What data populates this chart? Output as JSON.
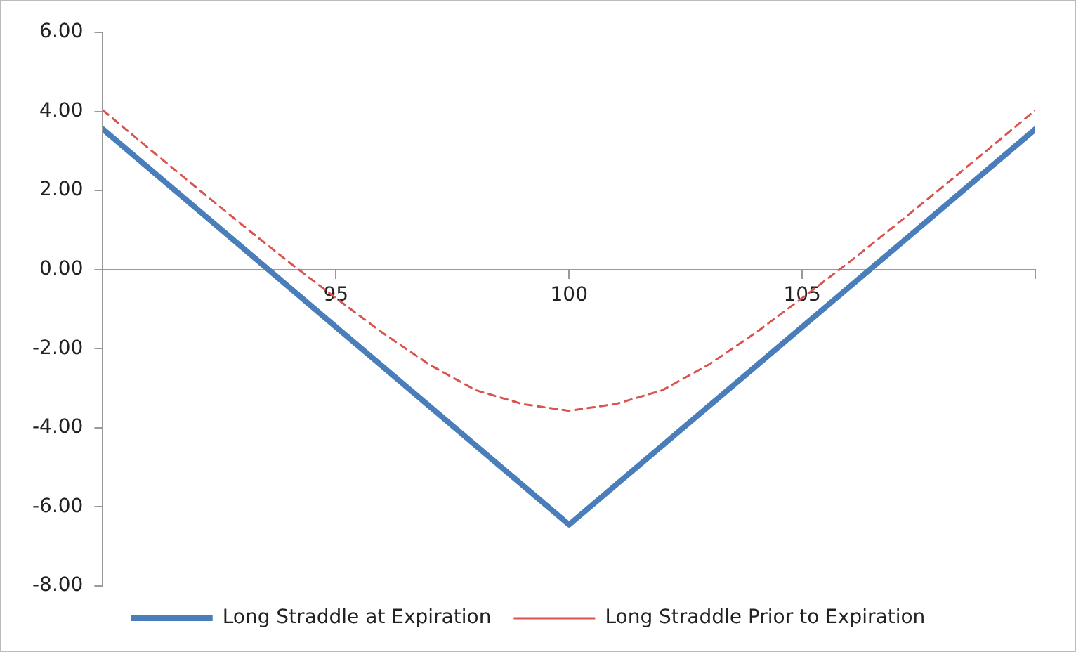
{
  "chart_data": {
    "type": "line",
    "x": [
      90,
      91,
      92,
      93,
      94,
      95,
      96,
      97,
      98,
      99,
      100,
      101,
      102,
      103,
      104,
      105,
      106,
      107,
      108,
      109,
      110
    ],
    "series": [
      {
        "name": "Long Straddle at Expiration",
        "color": "#4a7ebb",
        "line_style": "solid",
        "x": [
          90,
          100,
          110
        ],
        "values": [
          3.55,
          -6.45,
          3.55
        ]
      },
      {
        "name": "Long Straddle Prior to Expiration",
        "color": "#d9534f",
        "line_style": "dashed",
        "values": [
          4.03,
          3.05,
          2.08,
          1.12,
          0.18,
          -0.72,
          -1.6,
          -2.4,
          -3.05,
          -3.4,
          -3.57,
          -3.4,
          -3.05,
          -2.4,
          -1.6,
          -0.72,
          0.18,
          1.12,
          2.08,
          3.05,
          4.03
        ]
      }
    ],
    "xlim": [
      90,
      110
    ],
    "xticks": [
      {
        "value": 90,
        "label": null
      },
      95,
      100,
      105,
      {
        "value": 110,
        "label": null
      }
    ],
    "ylim": [
      -8,
      6
    ],
    "yticks": [
      {
        "value": -8,
        "label": "-8.00"
      },
      {
        "value": -6,
        "label": "-6.00"
      },
      {
        "value": -4,
        "label": "-4.00"
      },
      {
        "value": -2,
        "label": "-2.00"
      },
      {
        "value": 0,
        "label": "0.00"
      },
      {
        "value": 2,
        "label": "2.00"
      },
      {
        "value": 4,
        "label": "4.00"
      },
      {
        "value": 6,
        "label": "6.00"
      }
    ],
    "grid": false,
    "legend": "bottom",
    "marker": "none"
  }
}
